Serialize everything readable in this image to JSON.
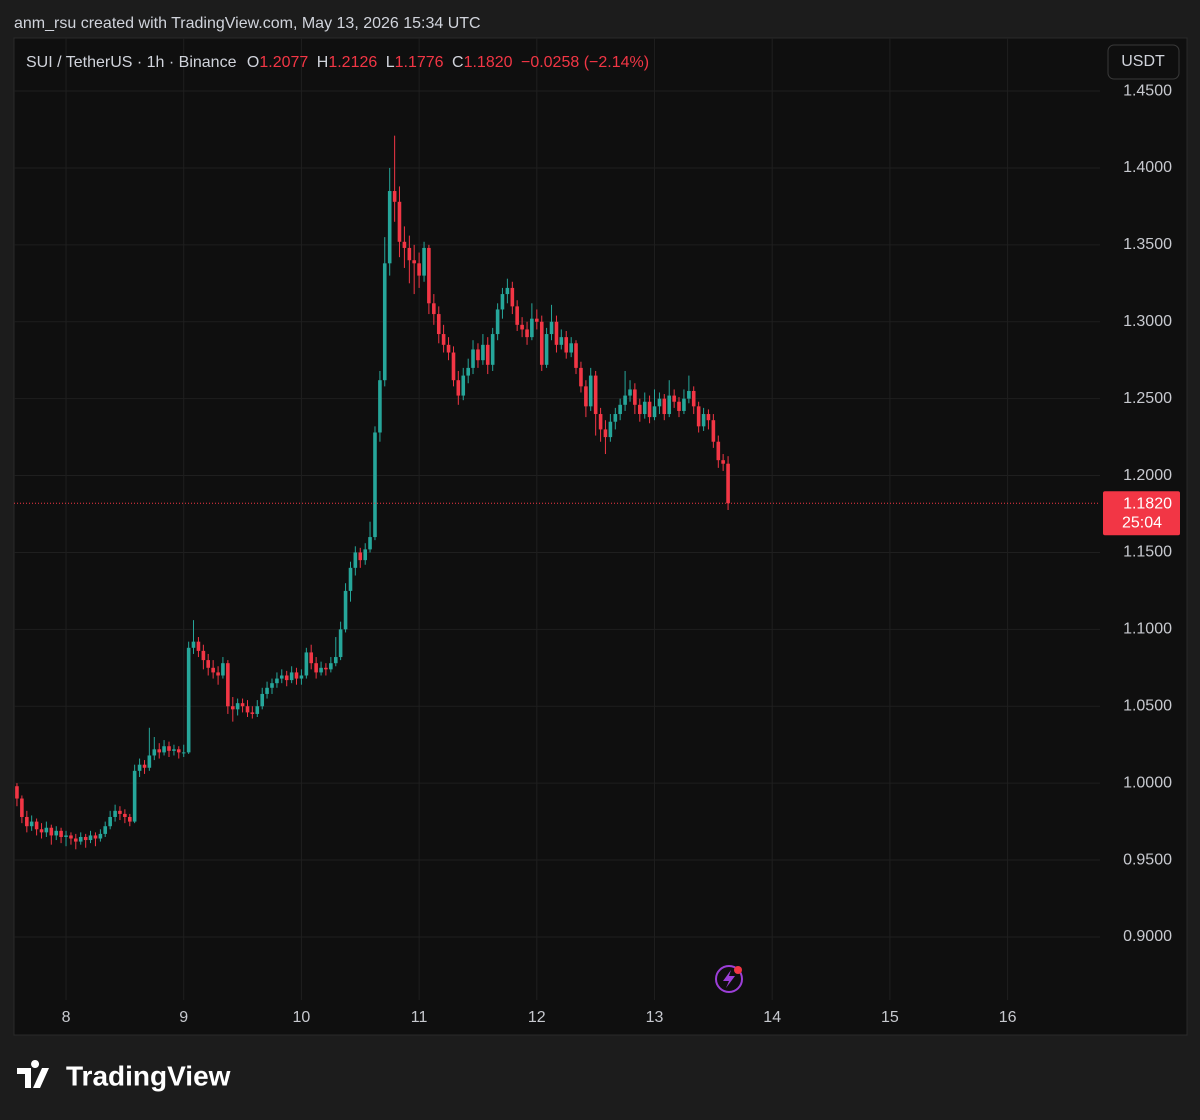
{
  "attribution": "anm_rsu created with TradingView.com, May 13, 2026 15:34 UTC",
  "logo": "TradingView",
  "chart_data": {
    "type": "candlestick",
    "legend": {
      "symbol": "SUI / TetherUS · 1h · Binance",
      "open_label": "O",
      "open": "1.2077",
      "high_label": "H",
      "high": "1.2126",
      "low_label": "L",
      "low": "1.1776",
      "close_label": "C",
      "close": "1.1820",
      "change": "−0.0258 (−2.14%)"
    },
    "currency": "USDT",
    "last_price": {
      "value": 1.182,
      "label": "1.1820"
    },
    "countdown": "25:04",
    "up_color": "#26a69a",
    "down_color": "#f23645",
    "grid": true,
    "xlim": [
      7.558,
      16.785
    ],
    "ylim": [
      0.859,
      1.4845
    ],
    "xticks": [
      8,
      9,
      10,
      11,
      12,
      13,
      14,
      15,
      16
    ],
    "yticks": [
      {
        "value": 0.9,
        "label": "0.9000"
      },
      {
        "value": 0.95,
        "label": "0.9500"
      },
      {
        "value": 1.0,
        "label": "1.0000"
      },
      {
        "value": 1.05,
        "label": "1.0500"
      },
      {
        "value": 1.1,
        "label": "1.1000"
      },
      {
        "value": 1.15,
        "label": "1.1500"
      },
      {
        "value": 1.2,
        "label": "1.2000"
      },
      {
        "value": 1.25,
        "label": "1.2500"
      },
      {
        "value": 1.3,
        "label": "1.3000"
      },
      {
        "value": 1.35,
        "label": "1.3500"
      },
      {
        "value": 1.4,
        "label": "1.4000"
      },
      {
        "value": 1.45,
        "label": "1.4500"
      }
    ],
    "x": [
      7.583,
      7.625,
      7.667,
      7.708,
      7.75,
      7.792,
      7.833,
      7.875,
      7.917,
      7.958,
      8.0,
      8.042,
      8.083,
      8.125,
      8.167,
      8.208,
      8.25,
      8.292,
      8.333,
      8.375,
      8.417,
      8.458,
      8.5,
      8.542,
      8.583,
      8.625,
      8.667,
      8.708,
      8.75,
      8.792,
      8.833,
      8.875,
      8.917,
      8.958,
      9.0,
      9.042,
      9.083,
      9.125,
      9.167,
      9.208,
      9.25,
      9.292,
      9.333,
      9.375,
      9.417,
      9.458,
      9.5,
      9.542,
      9.583,
      9.625,
      9.667,
      9.708,
      9.75,
      9.792,
      9.833,
      9.875,
      9.917,
      9.958,
      10.0,
      10.042,
      10.083,
      10.125,
      10.167,
      10.208,
      10.25,
      10.292,
      10.333,
      10.375,
      10.417,
      10.458,
      10.5,
      10.542,
      10.583,
      10.625,
      10.667,
      10.708,
      10.75,
      10.792,
      10.833,
      10.875,
      10.917,
      10.958,
      11.0,
      11.042,
      11.083,
      11.125,
      11.167,
      11.208,
      11.25,
      11.292,
      11.333,
      11.375,
      11.417,
      11.458,
      11.5,
      11.542,
      11.583,
      11.625,
      11.667,
      11.708,
      11.75,
      11.792,
      11.833,
      11.875,
      11.917,
      11.958,
      12.0,
      12.042,
      12.083,
      12.125,
      12.167,
      12.208,
      12.25,
      12.292,
      12.333,
      12.375,
      12.417,
      12.458,
      12.5,
      12.542,
      12.583,
      12.625,
      12.667,
      12.708,
      12.75,
      12.792,
      12.833,
      12.875,
      12.917,
      12.958,
      13.0,
      13.042,
      13.083,
      13.125,
      13.167,
      13.208,
      13.25,
      13.292,
      13.333,
      13.375,
      13.417,
      13.458,
      13.5,
      13.542,
      13.583,
      13.625
    ],
    "ohlc": [
      [
        0.998,
        1.0,
        0.985,
        0.99
      ],
      [
        0.99,
        0.992,
        0.974,
        0.978
      ],
      [
        0.978,
        0.982,
        0.968,
        0.972
      ],
      [
        0.972,
        0.979,
        0.969,
        0.975
      ],
      [
        0.975,
        0.977,
        0.966,
        0.97
      ],
      [
        0.97,
        0.974,
        0.964,
        0.968
      ],
      [
        0.968,
        0.975,
        0.965,
        0.971
      ],
      [
        0.971,
        0.973,
        0.96,
        0.966
      ],
      [
        0.966,
        0.972,
        0.963,
        0.969
      ],
      [
        0.969,
        0.971,
        0.961,
        0.965
      ],
      [
        0.965,
        0.969,
        0.959,
        0.966
      ],
      [
        0.966,
        0.968,
        0.96,
        0.964
      ],
      [
        0.964,
        0.967,
        0.957,
        0.962
      ],
      [
        0.962,
        0.968,
        0.96,
        0.965
      ],
      [
        0.965,
        0.967,
        0.958,
        0.963
      ],
      [
        0.963,
        0.969,
        0.961,
        0.966
      ],
      [
        0.966,
        0.968,
        0.959,
        0.964
      ],
      [
        0.964,
        0.97,
        0.962,
        0.967
      ],
      [
        0.967,
        0.975,
        0.965,
        0.972
      ],
      [
        0.972,
        0.982,
        0.97,
        0.978
      ],
      [
        0.978,
        0.986,
        0.975,
        0.982
      ],
      [
        0.982,
        0.985,
        0.976,
        0.98
      ],
      [
        0.98,
        0.983,
        0.974,
        0.978
      ],
      [
        0.978,
        0.98,
        0.972,
        0.975
      ],
      [
        0.975,
        1.012,
        0.974,
        1.008
      ],
      [
        1.008,
        1.016,
        1.004,
        1.012
      ],
      [
        1.012,
        1.015,
        1.006,
        1.01
      ],
      [
        1.01,
        1.036,
        1.008,
        1.018
      ],
      [
        1.018,
        1.03,
        1.015,
        1.022
      ],
      [
        1.022,
        1.026,
        1.016,
        1.02
      ],
      [
        1.02,
        1.028,
        1.018,
        1.024
      ],
      [
        1.024,
        1.027,
        1.017,
        1.021
      ],
      [
        1.021,
        1.025,
        1.018,
        1.022
      ],
      [
        1.022,
        1.024,
        1.016,
        1.02
      ],
      [
        1.02,
        1.025,
        1.017,
        1.02
      ],
      [
        1.02,
        1.092,
        1.019,
        1.088
      ],
      [
        1.088,
        1.106,
        1.084,
        1.092
      ],
      [
        1.092,
        1.095,
        1.082,
        1.086
      ],
      [
        1.086,
        1.09,
        1.074,
        1.08
      ],
      [
        1.08,
        1.084,
        1.07,
        1.075
      ],
      [
        1.075,
        1.08,
        1.068,
        1.072
      ],
      [
        1.072,
        1.076,
        1.064,
        1.07
      ],
      [
        1.07,
        1.082,
        1.068,
        1.078
      ],
      [
        1.078,
        1.08,
        1.045,
        1.05
      ],
      [
        1.05,
        1.056,
        1.04,
        1.048
      ],
      [
        1.048,
        1.055,
        1.044,
        1.052
      ],
      [
        1.052,
        1.055,
        1.046,
        1.05
      ],
      [
        1.05,
        1.054,
        1.043,
        1.046
      ],
      [
        1.046,
        1.05,
        1.042,
        1.045
      ],
      [
        1.045,
        1.054,
        1.043,
        1.05
      ],
      [
        1.05,
        1.062,
        1.048,
        1.058
      ],
      [
        1.058,
        1.066,
        1.055,
        1.062
      ],
      [
        1.062,
        1.068,
        1.058,
        1.065
      ],
      [
        1.065,
        1.072,
        1.062,
        1.068
      ],
      [
        1.068,
        1.074,
        1.065,
        1.07
      ],
      [
        1.07,
        1.073,
        1.063,
        1.067
      ],
      [
        1.067,
        1.076,
        1.065,
        1.072
      ],
      [
        1.072,
        1.075,
        1.064,
        1.068
      ],
      [
        1.068,
        1.074,
        1.064,
        1.07
      ],
      [
        1.07,
        1.088,
        1.068,
        1.085
      ],
      [
        1.085,
        1.09,
        1.074,
        1.078
      ],
      [
        1.078,
        1.082,
        1.068,
        1.072
      ],
      [
        1.072,
        1.079,
        1.07,
        1.075
      ],
      [
        1.075,
        1.078,
        1.07,
        1.074
      ],
      [
        1.074,
        1.082,
        1.072,
        1.078
      ],
      [
        1.078,
        1.095,
        1.076,
        1.082
      ],
      [
        1.082,
        1.105,
        1.08,
        1.1
      ],
      [
        1.1,
        1.13,
        1.098,
        1.125
      ],
      [
        1.125,
        1.144,
        1.118,
        1.14
      ],
      [
        1.14,
        1.154,
        1.135,
        1.15
      ],
      [
        1.15,
        1.153,
        1.14,
        1.145
      ],
      [
        1.145,
        1.156,
        1.142,
        1.152
      ],
      [
        1.152,
        1.17,
        1.15,
        1.16
      ],
      [
        1.16,
        1.232,
        1.158,
        1.228
      ],
      [
        1.228,
        1.268,
        1.222,
        1.262
      ],
      [
        1.262,
        1.355,
        1.258,
        1.338
      ],
      [
        1.338,
        1.4,
        1.33,
        1.385
      ],
      [
        1.385,
        1.421,
        1.365,
        1.378
      ],
      [
        1.378,
        1.388,
        1.342,
        1.352
      ],
      [
        1.352,
        1.362,
        1.335,
        1.348
      ],
      [
        1.348,
        1.356,
        1.325,
        1.34
      ],
      [
        1.34,
        1.35,
        1.318,
        1.338
      ],
      [
        1.338,
        1.345,
        1.322,
        1.33
      ],
      [
        1.33,
        1.352,
        1.326,
        1.348
      ],
      [
        1.348,
        1.35,
        1.305,
        1.312
      ],
      [
        1.312,
        1.318,
        1.298,
        1.305
      ],
      [
        1.305,
        1.31,
        1.286,
        1.292
      ],
      [
        1.292,
        1.298,
        1.28,
        1.285
      ],
      [
        1.285,
        1.29,
        1.275,
        1.28
      ],
      [
        1.28,
        1.284,
        1.258,
        1.262
      ],
      [
        1.262,
        1.268,
        1.246,
        1.252
      ],
      [
        1.252,
        1.27,
        1.249,
        1.265
      ],
      [
        1.265,
        1.276,
        1.26,
        1.27
      ],
      [
        1.27,
        1.288,
        1.266,
        1.282
      ],
      [
        1.282,
        1.286,
        1.27,
        1.275
      ],
      [
        1.275,
        1.292,
        1.272,
        1.285
      ],
      [
        1.285,
        1.29,
        1.266,
        1.272
      ],
      [
        1.272,
        1.296,
        1.268,
        1.292
      ],
      [
        1.292,
        1.312,
        1.288,
        1.308
      ],
      [
        1.308,
        1.322,
        1.302,
        1.318
      ],
      [
        1.318,
        1.328,
        1.312,
        1.322
      ],
      [
        1.322,
        1.326,
        1.305,
        1.31
      ],
      [
        1.31,
        1.314,
        1.294,
        1.298
      ],
      [
        1.298,
        1.303,
        1.29,
        1.295
      ],
      [
        1.295,
        1.3,
        1.285,
        1.29
      ],
      [
        1.29,
        1.312,
        1.288,
        1.302
      ],
      [
        1.302,
        1.308,
        1.295,
        1.3
      ],
      [
        1.3,
        1.304,
        1.268,
        1.272
      ],
      [
        1.272,
        1.296,
        1.27,
        1.292
      ],
      [
        1.292,
        1.311,
        1.288,
        1.3
      ],
      [
        1.3,
        1.304,
        1.28,
        1.285
      ],
      [
        1.285,
        1.295,
        1.282,
        1.29
      ],
      [
        1.29,
        1.294,
        1.276,
        1.28
      ],
      [
        1.28,
        1.29,
        1.277,
        1.286
      ],
      [
        1.286,
        1.288,
        1.266,
        1.27
      ],
      [
        1.27,
        1.274,
        1.254,
        1.258
      ],
      [
        1.258,
        1.262,
        1.238,
        1.245
      ],
      [
        1.245,
        1.27,
        1.242,
        1.265
      ],
      [
        1.265,
        1.268,
        1.226,
        1.24
      ],
      [
        1.24,
        1.244,
        1.222,
        1.23
      ],
      [
        1.23,
        1.236,
        1.214,
        1.225
      ],
      [
        1.225,
        1.24,
        1.222,
        1.235
      ],
      [
        1.235,
        1.244,
        1.23,
        1.24
      ],
      [
        1.24,
        1.25,
        1.236,
        1.246
      ],
      [
        1.246,
        1.268,
        1.242,
        1.252
      ],
      [
        1.252,
        1.262,
        1.248,
        1.256
      ],
      [
        1.256,
        1.26,
        1.24,
        1.246
      ],
      [
        1.246,
        1.25,
        1.235,
        1.24
      ],
      [
        1.24,
        1.254,
        1.237,
        1.248
      ],
      [
        1.248,
        1.252,
        1.234,
        1.238
      ],
      [
        1.238,
        1.256,
        1.236,
        1.245
      ],
      [
        1.245,
        1.254,
        1.24,
        1.25
      ],
      [
        1.25,
        1.253,
        1.236,
        1.24
      ],
      [
        1.24,
        1.262,
        1.238,
        1.252
      ],
      [
        1.252,
        1.256,
        1.244,
        1.248
      ],
      [
        1.248,
        1.251,
        1.238,
        1.242
      ],
      [
        1.242,
        1.256,
        1.24,
        1.25
      ],
      [
        1.25,
        1.265,
        1.247,
        1.255
      ],
      [
        1.255,
        1.258,
        1.24,
        1.245
      ],
      [
        1.245,
        1.248,
        1.228,
        1.232
      ],
      [
        1.232,
        1.244,
        1.229,
        1.24
      ],
      [
        1.24,
        1.243,
        1.23,
        1.236
      ],
      [
        1.236,
        1.24,
        1.218,
        1.222
      ],
      [
        1.222,
        1.226,
        1.205,
        1.21
      ],
      [
        1.21,
        1.214,
        1.203,
        1.2077
      ],
      [
        1.2077,
        1.2126,
        1.1776,
        1.182
      ]
    ]
  }
}
